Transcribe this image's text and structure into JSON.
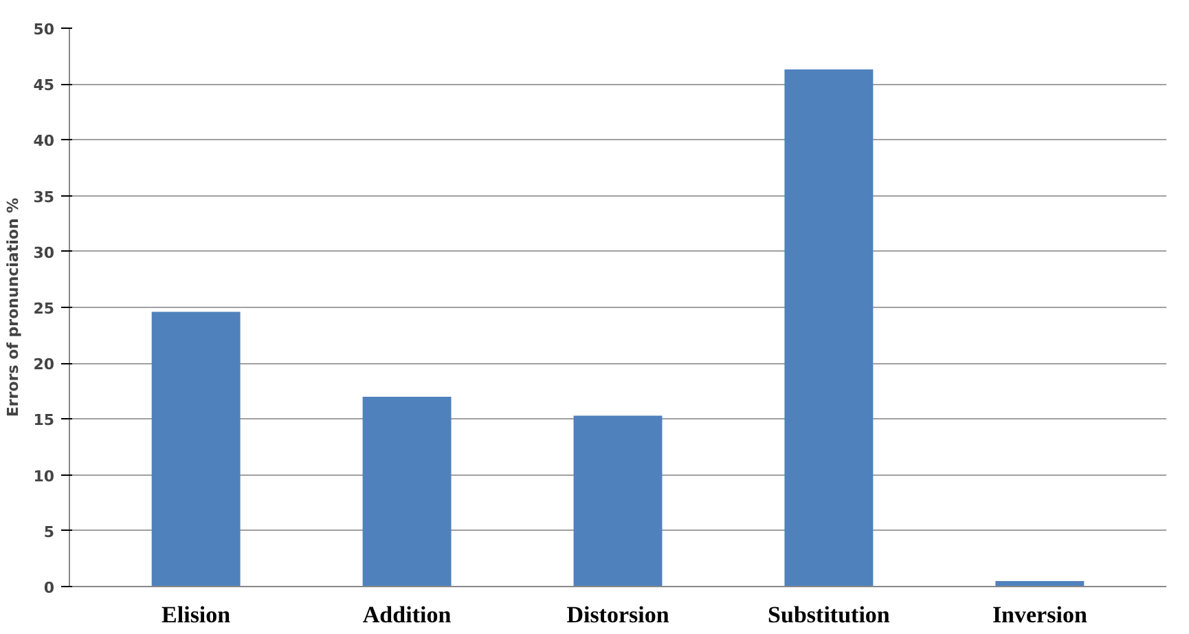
{
  "chart_data": {
    "type": "bar",
    "ylabel": "Errors of pronunciation %",
    "categories": [
      "Elision",
      "Addition",
      "Distorsion",
      "Substitution",
      "Inversion"
    ],
    "values": [
      24.6,
      17.0,
      15.3,
      46.3,
      0.5
    ],
    "color": "#4f81bd",
    "ylim": [
      0,
      50
    ],
    "yticks": [
      0,
      5,
      10,
      15,
      20,
      25,
      30,
      35,
      40,
      45,
      50
    ],
    "grid": "y"
  }
}
